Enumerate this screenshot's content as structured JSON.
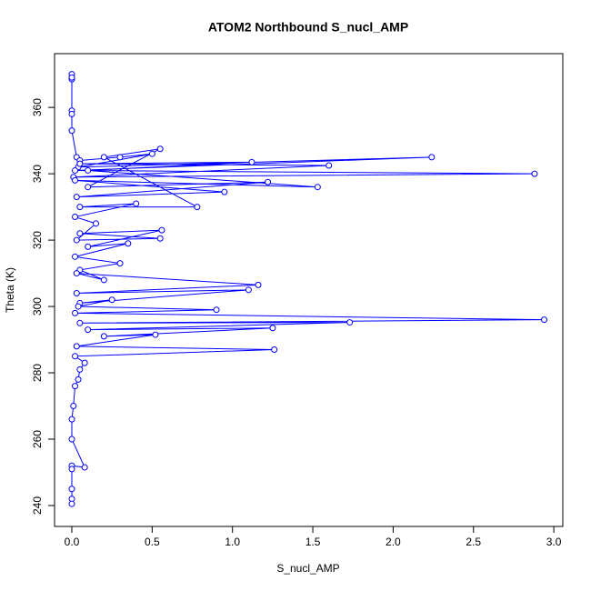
{
  "chart_data": {
    "type": "line",
    "title": "ATOM2 Northbound S_nucl_AMP",
    "x_label": "S_nucl_AMP",
    "y_label": "Theta (K)",
    "xlim": [
      -0.1075,
      3.056
    ],
    "ylim": [
      233.7,
      376.2
    ],
    "xticks": [
      {
        "value": 0,
        "label": "0.0"
      },
      {
        "value": 0.5,
        "label": "0.5"
      },
      {
        "value": 1,
        "label": "1.0"
      },
      {
        "value": 1.5,
        "label": "1.5"
      },
      {
        "value": 2,
        "label": "2.0"
      },
      {
        "value": 2.5,
        "label": "2.5"
      },
      {
        "value": 3,
        "label": "3.0"
      }
    ],
    "yticks": [
      240,
      260,
      280,
      300,
      320,
      340,
      360
    ],
    "markers": true,
    "series": [
      {
        "name": "S_nucl_AMP",
        "color": "#0000ff",
        "x": [
          0,
          0,
          0,
          0,
          0,
          0,
          0.03,
          0.05,
          0.3,
          0.5,
          0.04,
          2.24,
          0.02,
          2.88,
          0.01,
          1.6,
          0.05,
          1.12,
          0.1,
          1.53,
          0.02,
          0.95,
          0.03,
          1.22,
          0.1,
          0.55,
          0.2,
          0.78,
          0.05,
          0.4,
          0.02,
          0.15,
          0.03,
          0.55,
          0.05,
          0.56,
          0.1,
          0.35,
          0.02,
          0.3,
          0.05,
          0.2,
          0.03,
          1.16,
          0.03,
          1.1,
          0.05,
          0.25,
          0.04,
          0.9,
          0.02,
          2.94,
          0.05,
          1.73,
          0.1,
          1.25,
          0.2,
          0.52,
          0.03,
          1.26,
          0.02,
          0.08,
          0.05,
          0.04,
          0.02,
          0.01,
          0,
          0,
          0.08,
          0,
          0,
          0,
          0,
          0
        ],
        "values": [
          370,
          368.5,
          369,
          359,
          358,
          353,
          345,
          344,
          345,
          346,
          342,
          345,
          341,
          340,
          339,
          342.5,
          343,
          343.5,
          341,
          336,
          338,
          334.5,
          333,
          337.5,
          336,
          347.5,
          345,
          330,
          330,
          331,
          327,
          325,
          320,
          320.5,
          322,
          323,
          318,
          319,
          315,
          313,
          311,
          308,
          310,
          306.5,
          304,
          305,
          301,
          302,
          300,
          299,
          298,
          296,
          295,
          295.2,
          293,
          293.5,
          291,
          291.5,
          288,
          287,
          285,
          283,
          281,
          278,
          276,
          270,
          266,
          260,
          251.5,
          252,
          251,
          245,
          242,
          240.5
        ]
      }
    ]
  }
}
